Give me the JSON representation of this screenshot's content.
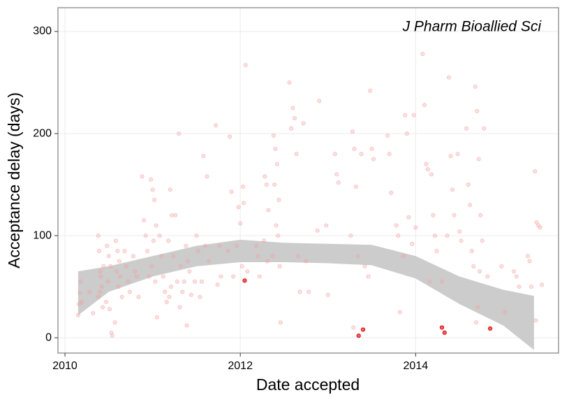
{
  "chart_data": {
    "type": "scatter",
    "annotation": "J Pharm Bioallied Sci",
    "x_label": "Date accepted",
    "y_label": "Acceptance delay (days)",
    "xlim": [
      2009.92,
      2015.63
    ],
    "ylim": [
      -15,
      323.3
    ],
    "xticks": [
      2010,
      2012,
      2014
    ],
    "yticks": [
      0,
      100,
      200,
      300
    ],
    "grid": true,
    "band": {
      "color": "#cccccc",
      "x": [
        2010.15,
        2010.5,
        2011,
        2011.5,
        2012,
        2012.5,
        2013,
        2013.5,
        2014,
        2014.5,
        2015,
        2015.35
      ],
      "upper": [
        65,
        70,
        80,
        90,
        96,
        93,
        92,
        91,
        80,
        60,
        47,
        41
      ],
      "lower": [
        22,
        45,
        60,
        70,
        74,
        74,
        73,
        71,
        58,
        33,
        12,
        -12
      ]
    },
    "series": [
      {
        "color": "#f4a0a0",
        "opacity": 0.5,
        "x": [
          2010.15,
          2010.16,
          2010.17,
          2010.18,
          2010.19,
          2010.28,
          2010.32,
          2010.38,
          2010.39,
          2010.4,
          2010.41,
          2010.42,
          2010.4,
          2010.38,
          2010.43,
          2010.44,
          2010.48,
          2010.5,
          2010.52,
          2010.49,
          2010.47,
          2010.51,
          2010.53,
          2010.54,
          2010.58,
          2010.6,
          2010.62,
          2010.59,
          2010.63,
          2010.61,
          2010.65,
          2010.57,
          2010.68,
          2010.7,
          2010.72,
          2010.74,
          2010.78,
          2010.8,
          2010.82,
          2010.84,
          2010.88,
          2010.9,
          2010.92,
          2010.94,
          2010.96,
          2010.98,
          2011,
          2011.02,
          2011.04,
          2011.01,
          2010.99,
          2011.03,
          2011.05,
          2011.08,
          2011.1,
          2011.12,
          2011.14,
          2011.16,
          2011.2,
          2011.22,
          2011.18,
          2011.24,
          2011.21,
          2011.19,
          2011.3,
          2011.26,
          2011.32,
          2011.28,
          2011.34,
          2011.31,
          2011.38,
          2011.4,
          2011.42,
          2011.36,
          2011.44,
          2011.39,
          2011.5,
          2011.52,
          2011.48,
          2011.54,
          2011.58,
          2011.62,
          2011.6,
          2011.64,
          2011.56,
          2011.72,
          2011.76,
          2011.78,
          2011.74,
          2011.88,
          2011.9,
          2011.86,
          2011.92,
          2011.98,
          2012,
          2011.96,
          2012.02,
          2012.03,
          2012.06,
          2012.04,
          2012.08,
          2012.18,
          2012.2,
          2012.22,
          2012.28,
          2012.3,
          2012.32,
          2012.27,
          2012.31,
          2012.38,
          2012.4,
          2012.42,
          2012.39,
          2012.44,
          2012.41,
          2012.43,
          2012.37,
          2012.45,
          2012.46,
          2012.56,
          2012.6,
          2012.62,
          2012.58,
          2012.64,
          2012.66,
          2012.68,
          2012.72,
          2012.75,
          2012.78,
          2012.9,
          2012.88,
          2012.98,
          2013,
          2013.08,
          2013.1,
          2013.12,
          2013.28,
          2013.3,
          2013.32,
          2013.26,
          2013.34,
          2013.29,
          2013.38,
          2013.42,
          2013.48,
          2013.5,
          2013.52,
          2013.46,
          2013.68,
          2013.7,
          2013.72,
          2013.78,
          2013.8,
          2013.82,
          2013.88,
          2013.9,
          2013.92,
          2013.86,
          2013.98,
          2014,
          2013.96,
          2014.08,
          2014.1,
          2014.12,
          2014.14,
          2014.16,
          2014.18,
          2014.2,
          2014.22,
          2014.24,
          2014.38,
          2014.4,
          2014.42,
          2014.44,
          2014.36,
          2014.3,
          2014.48,
          2014.5,
          2014.52,
          2014.58,
          2014.6,
          2014.62,
          2014.64,
          2014.66,
          2014.68,
          2014.7,
          2014.72,
          2014.74,
          2014.76,
          2014.73,
          2014.71,
          2014.69,
          2014.78,
          2014.82,
          2014.98,
          2015.02,
          2015.12,
          2015.15,
          2015.18,
          2015.28,
          2015.3,
          2015.32,
          2015.36,
          2015.38,
          2015.4,
          2015.42,
          2015.44,
          2015.37
        ],
        "values": [
          22,
          33,
          44,
          55,
          35,
          45,
          24,
          100,
          85,
          65,
          60,
          50,
          45,
          40,
          30,
          70,
          90,
          80,
          70,
          55,
          35,
          28,
          5,
          2,
          95,
          85,
          75,
          65,
          60,
          50,
          40,
          15,
          85,
          70,
          55,
          45,
          80,
          65,
          60,
          40,
          158,
          115,
          100,
          85,
          60,
          155,
          145,
          135,
          110,
          95,
          70,
          55,
          20,
          100,
          80,
          60,
          45,
          35,
          145,
          120,
          95,
          80,
          50,
          40,
          200,
          120,
          70,
          55,
          45,
          30,
          90,
          75,
          65,
          55,
          42,
          12,
          100,
          85,
          55,
          40,
          178,
          158,
          90,
          75,
          55,
          208,
          90,
          60,
          52,
          197,
          143,
          85,
          60,
          128,
          112,
          90,
          70,
          148,
          267,
          132,
          65,
          90,
          80,
          60,
          158,
          150,
          125,
          95,
          75,
          198,
          185,
          170,
          150,
          135,
          110,
          100,
          80,
          70,
          15,
          250,
          225,
          215,
          205,
          180,
          80,
          45,
          210,
          75,
          45,
          232,
          105,
          110,
          42,
          180,
          160,
          152,
          202,
          185,
          148,
          100,
          80,
          10,
          180,
          70,
          242,
          185,
          175,
          60,
          198,
          180,
          142,
          110,
          100,
          25,
          218,
          200,
          118,
          80,
          218,
          108,
          92,
          278,
          228,
          170,
          165,
          55,
          160,
          120,
          100,
          85,
          255,
          178,
          145,
          120,
          100,
          55,
          180,
          104,
          95,
          205,
          150,
          130,
          85,
          70,
          246,
          222,
          175,
          120,
          95,
          65,
          30,
          15,
          205,
          60,
          70,
          25,
          65,
          60,
          50,
          80,
          75,
          50,
          163,
          113,
          110,
          108,
          52,
          17
        ]
      },
      {
        "color": "#e00000",
        "opacity": 1,
        "x": [
          2012.05,
          2013.35,
          2013.4,
          2014.3,
          2014.33,
          2014.85
        ],
        "values": [
          56,
          2,
          8,
          10,
          5,
          9
        ]
      }
    ]
  }
}
